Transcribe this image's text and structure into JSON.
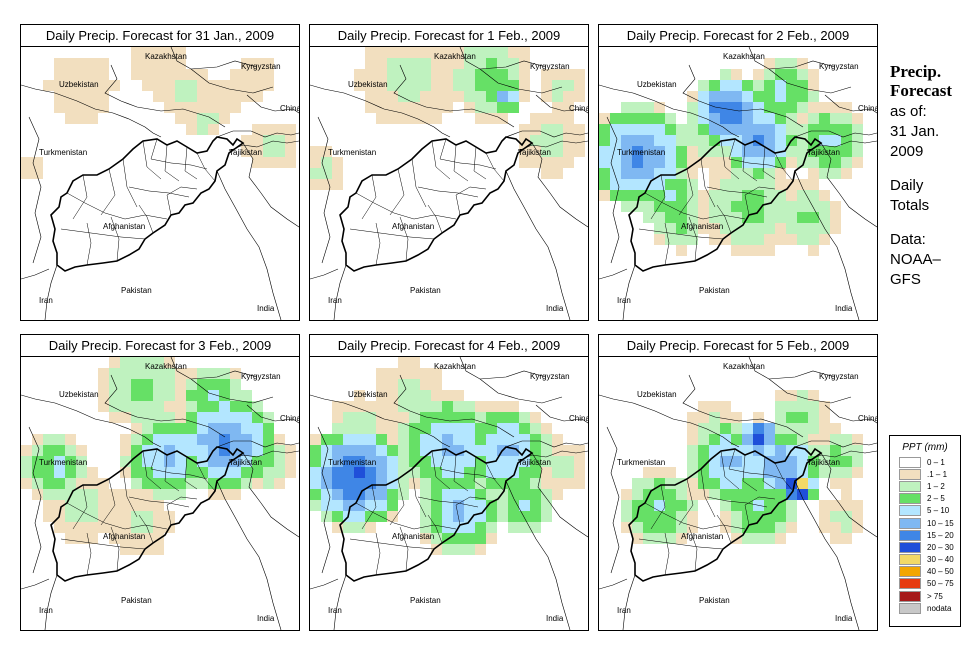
{
  "panels": [
    {
      "title": "Daily Precip. Forecast for  31 Jan., 2009",
      "day": 0
    },
    {
      "title": "Daily Precip. Forecast for  1 Feb., 2009",
      "day": 1
    },
    {
      "title": "Daily Precip. Forecast for  2 Feb., 2009",
      "day": 2
    },
    {
      "title": "Daily Precip. Forecast for  3 Feb., 2009",
      "day": 3
    },
    {
      "title": "Daily Precip. Forecast for  4 Feb., 2009",
      "day": 4
    },
    {
      "title": "Daily Precip. Forecast for  5 Feb., 2009",
      "day": 5
    }
  ],
  "map_labels": {
    "uzbekistan": "Uzbekistan",
    "kazakhstan": "Kazakhstan",
    "kyrgyzstan": "Kyrgyzstan",
    "china": "China",
    "turkmenistan": "Turkmenistan",
    "tajikistan": "Tajikistan",
    "afghanistan": "Afghanistan",
    "iran": "Iran",
    "pakistan": "Pakistan",
    "india": "India"
  },
  "side": {
    "heading1": "Precip.",
    "heading2": "Forecast",
    "asof": "as of:",
    "date1": "31 Jan.",
    "date2": "2009",
    "daily": "Daily",
    "totals": "Totals",
    "data": "Data:",
    "source1": "NOAA–",
    "source2": "GFS"
  },
  "legend": {
    "title": "PPT (mm)",
    "classes": [
      {
        "label": "0 – 1",
        "color": "#ffffff"
      },
      {
        "label": ".1 – 1",
        "color": "#f2dfbf"
      },
      {
        "label": "1 – 2",
        "color": "#bff2bf"
      },
      {
        "label": "2 – 5",
        "color": "#66e066"
      },
      {
        "label": "5 – 10",
        "color": "#b3e6ff"
      },
      {
        "label": "10 – 15",
        "color": "#7fb8f2"
      },
      {
        "label": "15 – 20",
        "color": "#3f86e6"
      },
      {
        "label": "20 – 30",
        "color": "#1f4fd9"
      },
      {
        "label": "30 – 40",
        "color": "#f2d966"
      },
      {
        "label": "40 – 50",
        "color": "#f2a600"
      },
      {
        "label": "50 – 75",
        "color": "#e63b0f"
      },
      {
        "label": "> 75",
        "color": "#a61a1a"
      },
      {
        "label": "nodata",
        "color": "#c8c8c8"
      }
    ]
  }
}
